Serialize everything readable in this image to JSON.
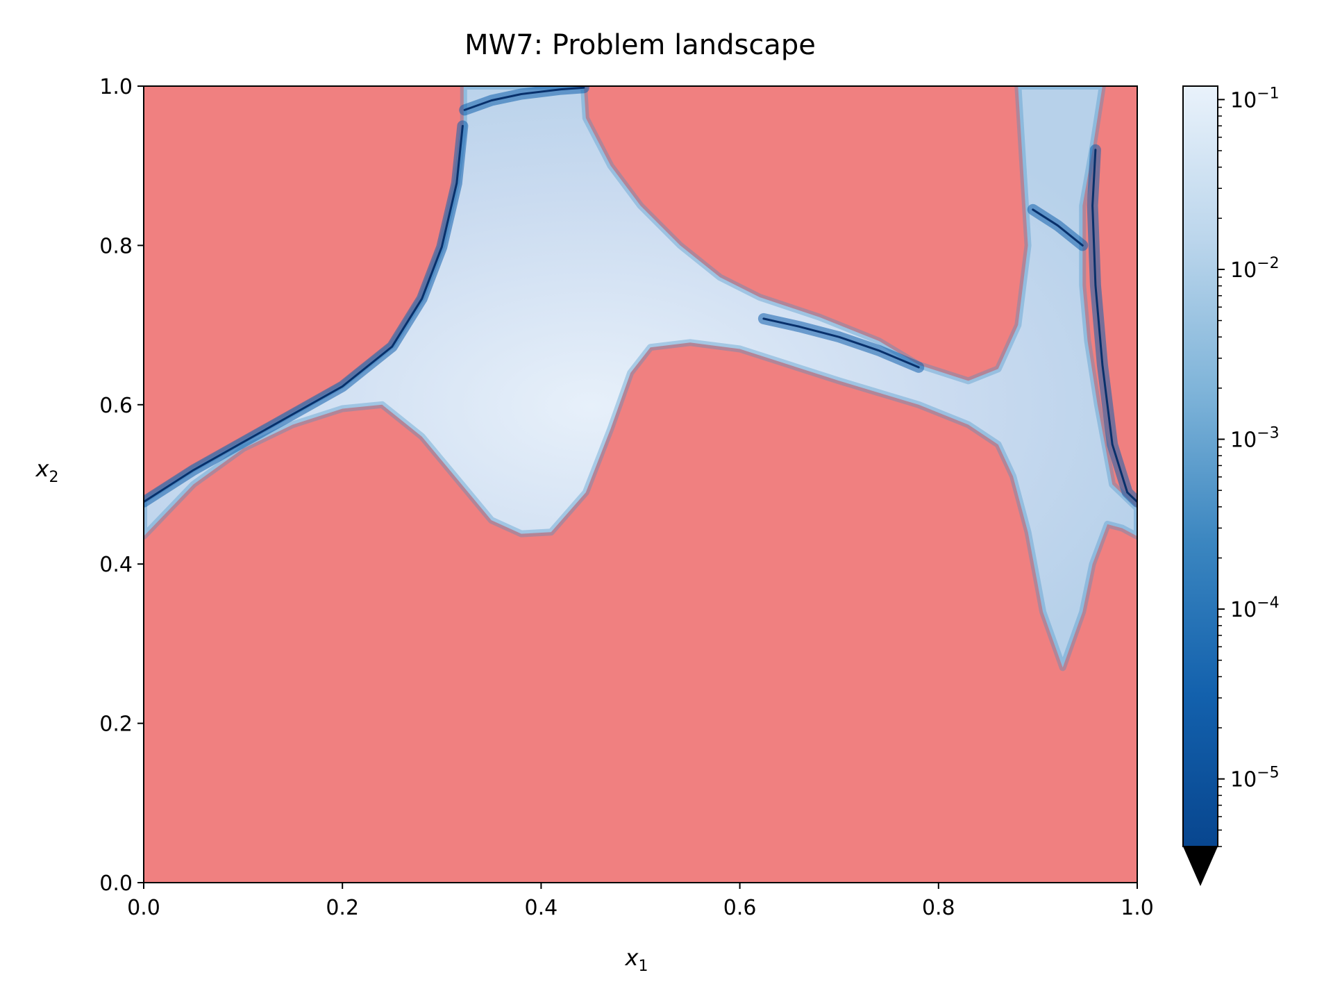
{
  "chart_data": {
    "type": "heatmap",
    "title": "MW7: Problem landscape",
    "xlabel": "x",
    "xlabel_sub": "1",
    "ylabel": "x",
    "ylabel_sub": "2",
    "xlim": [
      0.0,
      1.0
    ],
    "ylim": [
      0.0,
      1.0
    ],
    "x_ticks": [
      0.0,
      0.2,
      0.4,
      0.6,
      0.8,
      1.0
    ],
    "x_tick_labels": [
      "0.0",
      "0.2",
      "0.4",
      "0.6",
      "0.8",
      "1.0"
    ],
    "y_ticks": [
      0.0,
      0.2,
      0.4,
      0.6,
      0.8,
      1.0
    ],
    "y_tick_labels": [
      "0.0",
      "0.2",
      "0.4",
      "0.6",
      "0.8",
      "1.0"
    ],
    "grid": false,
    "colormap": "Blues_r",
    "colorbar": {
      "scale": "log",
      "range": [
        4e-06,
        0.12
      ],
      "extend": "min",
      "tick_exponents": [
        -5,
        -4,
        -3,
        -2,
        -1
      ],
      "tick_base": "10"
    },
    "infeasible_color": "#f08080",
    "feasible_regions": [
      {
        "name": "upper-left band",
        "boundary": [
          [
            0.0,
            0.48
          ],
          [
            0.05,
            0.52
          ],
          [
            0.1,
            0.555
          ],
          [
            0.15,
            0.59
          ],
          [
            0.2,
            0.625
          ],
          [
            0.25,
            0.675
          ],
          [
            0.28,
            0.735
          ],
          [
            0.3,
            0.8
          ],
          [
            0.315,
            0.88
          ],
          [
            0.322,
            0.95
          ],
          [
            0.322,
            1.0
          ],
          [
            0.443,
            1.0
          ],
          [
            0.445,
            0.96
          ],
          [
            0.47,
            0.9
          ],
          [
            0.5,
            0.85
          ],
          [
            0.54,
            0.8
          ],
          [
            0.58,
            0.76
          ],
          [
            0.62,
            0.735
          ],
          [
            0.68,
            0.71
          ],
          [
            0.74,
            0.68
          ],
          [
            0.78,
            0.65
          ],
          [
            0.83,
            0.63
          ],
          [
            0.86,
            0.645
          ],
          [
            0.88,
            0.7
          ],
          [
            0.89,
            0.8
          ],
          [
            0.885,
            0.9
          ],
          [
            0.88,
            1.0
          ],
          [
            0.965,
            1.0
          ],
          [
            0.955,
            0.92
          ],
          [
            0.945,
            0.85
          ],
          [
            0.945,
            0.75
          ],
          [
            0.95,
            0.68
          ],
          [
            0.96,
            0.6
          ],
          [
            0.975,
            0.5
          ],
          [
            1.0,
            0.47
          ],
          [
            1.0,
            0.435
          ],
          [
            0.985,
            0.445
          ],
          [
            0.97,
            0.45
          ],
          [
            0.955,
            0.4
          ],
          [
            0.945,
            0.34
          ],
          [
            0.925,
            0.27
          ],
          [
            0.905,
            0.34
          ],
          [
            0.89,
            0.44
          ],
          [
            0.875,
            0.51
          ],
          [
            0.86,
            0.55
          ],
          [
            0.83,
            0.575
          ],
          [
            0.78,
            0.6
          ],
          [
            0.7,
            0.63
          ],
          [
            0.6,
            0.67
          ],
          [
            0.55,
            0.678
          ],
          [
            0.51,
            0.672
          ],
          [
            0.49,
            0.64
          ],
          [
            0.47,
            0.57
          ],
          [
            0.445,
            0.49
          ],
          [
            0.41,
            0.44
          ],
          [
            0.38,
            0.438
          ],
          [
            0.35,
            0.455
          ],
          [
            0.32,
            0.5
          ],
          [
            0.28,
            0.56
          ],
          [
            0.24,
            0.6
          ],
          [
            0.2,
            0.595
          ],
          [
            0.15,
            0.575
          ],
          [
            0.1,
            0.545
          ],
          [
            0.05,
            0.5
          ],
          [
            0.0,
            0.435
          ]
        ]
      }
    ],
    "dark_edges": [
      [
        [
          0.0,
          0.478
        ],
        [
          0.05,
          0.518
        ],
        [
          0.1,
          0.553
        ],
        [
          0.15,
          0.588
        ],
        [
          0.2,
          0.623
        ],
        [
          0.25,
          0.673
        ],
        [
          0.28,
          0.733
        ],
        [
          0.3,
          0.798
        ],
        [
          0.315,
          0.878
        ],
        [
          0.321,
          0.95
        ]
      ],
      [
        [
          0.323,
          0.97
        ],
        [
          0.35,
          0.982
        ],
        [
          0.38,
          0.99
        ],
        [
          0.42,
          0.996
        ],
        [
          0.443,
          0.998
        ]
      ],
      [
        [
          0.624,
          0.708
        ],
        [
          0.66,
          0.698
        ],
        [
          0.7,
          0.685
        ],
        [
          0.74,
          0.668
        ],
        [
          0.78,
          0.647
        ]
      ],
      [
        [
          0.895,
          0.845
        ],
        [
          0.92,
          0.825
        ],
        [
          0.945,
          0.8
        ]
      ],
      [
        [
          0.958,
          0.92
        ],
        [
          0.955,
          0.85
        ],
        [
          0.958,
          0.75
        ],
        [
          0.965,
          0.65
        ],
        [
          0.975,
          0.55
        ],
        [
          0.99,
          0.49
        ],
        [
          1.0,
          0.478
        ]
      ]
    ]
  }
}
